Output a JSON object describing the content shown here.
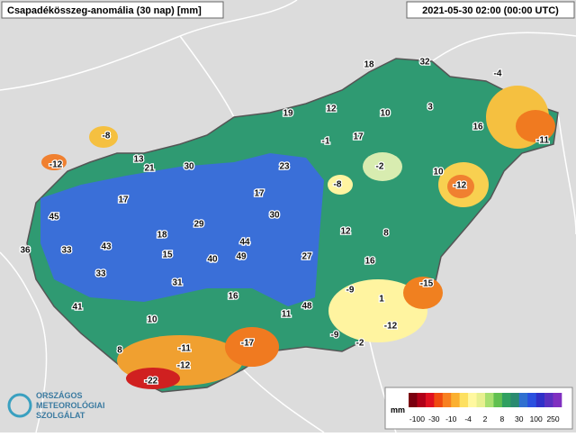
{
  "header": {
    "title": "Csapadékösszeg-anomália (30 nap) [mm]",
    "timestamp": "2021-05-30 02:00 (00:00 UTC)"
  },
  "stations": [
    18,
    32,
    -4,
    19,
    12,
    10,
    3,
    16,
    -11,
    -8,
    -1,
    17,
    -2,
    10,
    -12,
    13,
    21,
    30,
    23,
    -8,
    -12,
    17,
    17,
    45,
    30,
    29,
    12,
    8,
    18,
    44,
    43,
    36,
    33,
    15,
    40,
    49,
    27,
    16,
    33,
    31,
    -9,
    -15,
    16,
    1,
    41,
    48,
    11,
    10,
    -12,
    -9,
    -2,
    -11,
    -17,
    8,
    -12,
    -22
  ],
  "legend": {
    "unit": "mm",
    "ticks": [
      -100,
      -30,
      -10,
      -4,
      2,
      8,
      30,
      100,
      250
    ],
    "colors": [
      "#7a0010",
      "#b00018",
      "#e01020",
      "#f04a10",
      "#f88020",
      "#fbb030",
      "#fde060",
      "#fff8a0",
      "#e8f090",
      "#a8e070",
      "#60c050",
      "#30a060",
      "#2a8a70",
      "#3070d0",
      "#2a50e0",
      "#3030c8",
      "#5a30c0",
      "#8030c0"
    ]
  },
  "logo": [
    "ORSZÁGOS",
    "METEOROLÓGIAI",
    "SZOLGÁLAT"
  ]
}
